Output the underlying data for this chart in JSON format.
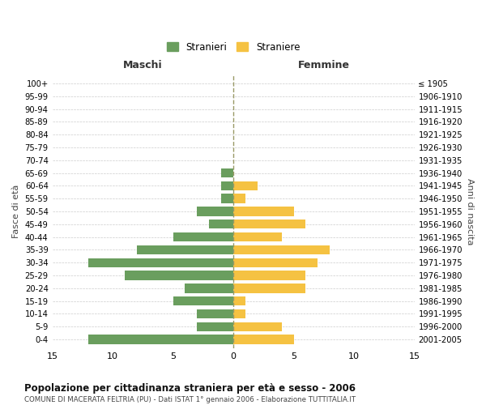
{
  "age_groups": [
    "100+",
    "95-99",
    "90-94",
    "85-89",
    "80-84",
    "75-79",
    "70-74",
    "65-69",
    "60-64",
    "55-59",
    "50-54",
    "45-49",
    "40-44",
    "35-39",
    "30-34",
    "25-29",
    "20-24",
    "15-19",
    "10-14",
    "5-9",
    "0-4"
  ],
  "birth_years": [
    "≤ 1905",
    "1906-1910",
    "1911-1915",
    "1916-1920",
    "1921-1925",
    "1926-1930",
    "1931-1935",
    "1936-1940",
    "1941-1945",
    "1946-1950",
    "1951-1955",
    "1956-1960",
    "1961-1965",
    "1966-1970",
    "1971-1975",
    "1976-1980",
    "1981-1985",
    "1986-1990",
    "1991-1995",
    "1996-2000",
    "2001-2005"
  ],
  "maschi": [
    0,
    0,
    0,
    0,
    0,
    0,
    0,
    1,
    1,
    1,
    3,
    2,
    5,
    8,
    12,
    9,
    4,
    5,
    3,
    3,
    12
  ],
  "femmine": [
    0,
    0,
    0,
    0,
    0,
    0,
    0,
    0,
    2,
    1,
    5,
    6,
    4,
    8,
    7,
    6,
    6,
    1,
    1,
    4,
    5
  ],
  "maschi_color": "#6a9e5e",
  "femmine_color": "#f5c242",
  "title": "Popolazione per cittadinanza straniera per età e sesso - 2006",
  "subtitle": "COMUNE DI MACERATA FELTRIA (PU) - Dati ISTAT 1° gennaio 2006 - Elaborazione TUTTITALIA.IT",
  "label_maschi": "Maschi",
  "label_femmine": "Femmine",
  "legend_stranieri": "Stranieri",
  "legend_straniere": "Straniere",
  "ylabel_left": "Fasce di età",
  "ylabel_right": "Anni di nascita",
  "xlim": 15,
  "background_color": "#ffffff",
  "grid_color": "#cccccc"
}
